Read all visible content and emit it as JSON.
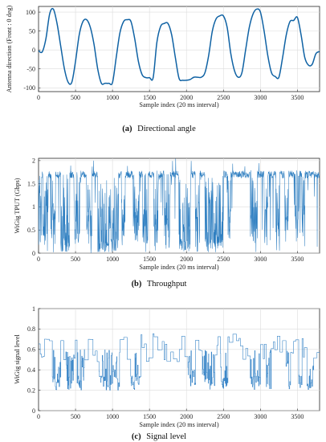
{
  "chart_data": [
    {
      "type": "line",
      "caption_tag": "(a)",
      "caption": "Directional angle",
      "xlabel": "Sample index (20 ms interval)",
      "ylabel": "Antenna direction (Front : 0 deg)",
      "xlim": [
        0,
        3800
      ],
      "ylim": [
        -110,
        115
      ],
      "xticks": [
        0,
        500,
        1000,
        1500,
        2000,
        2500,
        3000,
        3500
      ],
      "yticks": [
        -100,
        -50,
        0,
        50,
        100
      ],
      "grid": true,
      "color": "#0f62a4",
      "x": [
        0,
        50,
        100,
        150,
        200,
        250,
        300,
        350,
        400,
        450,
        500,
        550,
        600,
        650,
        700,
        750,
        800,
        850,
        900,
        950,
        1000,
        1050,
        1100,
        1150,
        1200,
        1250,
        1300,
        1350,
        1400,
        1450,
        1500,
        1550,
        1600,
        1650,
        1700,
        1750,
        1800,
        1850,
        1900,
        1950,
        2000,
        2050,
        2100,
        2150,
        2200,
        2250,
        2300,
        2350,
        2400,
        2450,
        2500,
        2550,
        2600,
        2650,
        2700,
        2750,
        2800,
        2850,
        2900,
        2950,
        3000,
        3050,
        3100,
        3150,
        3200,
        3250,
        3300,
        3350,
        3400,
        3450,
        3500,
        3550,
        3600,
        3650,
        3700,
        3750,
        3800
      ],
      "y": [
        -2,
        -5,
        30,
        95,
        108,
        70,
        10,
        -50,
        -85,
        -85,
        -30,
        40,
        75,
        80,
        60,
        15,
        -50,
        -88,
        -88,
        -88,
        -86,
        -20,
        45,
        75,
        80,
        75,
        30,
        -30,
        -65,
        -73,
        -73,
        -73,
        20,
        62,
        70,
        70,
        40,
        -20,
        -75,
        -80,
        -80,
        -78,
        -72,
        -72,
        -72,
        -60,
        -15,
        50,
        82,
        90,
        90,
        60,
        -10,
        -55,
        -72,
        -60,
        0,
        60,
        95,
        108,
        100,
        50,
        -15,
        -60,
        -70,
        -72,
        -20,
        40,
        75,
        78,
        86,
        40,
        -20,
        -40,
        -38,
        -10,
        -4
      ]
    },
    {
      "type": "line",
      "caption_tag": "(b)",
      "caption": "Throughput",
      "xlabel": "Sample index (20 ms interval)",
      "ylabel": "WiGig TPUT (Gbps)",
      "xlim": [
        0,
        3800
      ],
      "ylim": [
        0,
        2.05
      ],
      "xticks": [
        0,
        500,
        1000,
        1500,
        2000,
        2500,
        3000,
        3500
      ],
      "yticks": [
        0,
        0.5,
        1,
        1.5,
        2
      ],
      "grid": true,
      "color": "#2f7fc1",
      "note": "Dense noisy throughput trace; values mostly near 1.7 Gbps with frequent drops toward 0."
    },
    {
      "type": "line",
      "caption_tag": "(c)",
      "caption": "Signal level",
      "xlabel": "Sample index (20 ms interval)",
      "ylabel": "WiGig signal level",
      "xlim": [
        0,
        3800
      ],
      "ylim": [
        0,
        1
      ],
      "xticks": [
        0,
        500,
        1000,
        1500,
        2000,
        2500,
        3000,
        3500
      ],
      "yticks": [
        0,
        0.2,
        0.4,
        0.6,
        0.8,
        1
      ],
      "grid": true,
      "color": "#3a86c8",
      "note": "Step-like signal level between about 0.2 and 0.75."
    }
  ]
}
